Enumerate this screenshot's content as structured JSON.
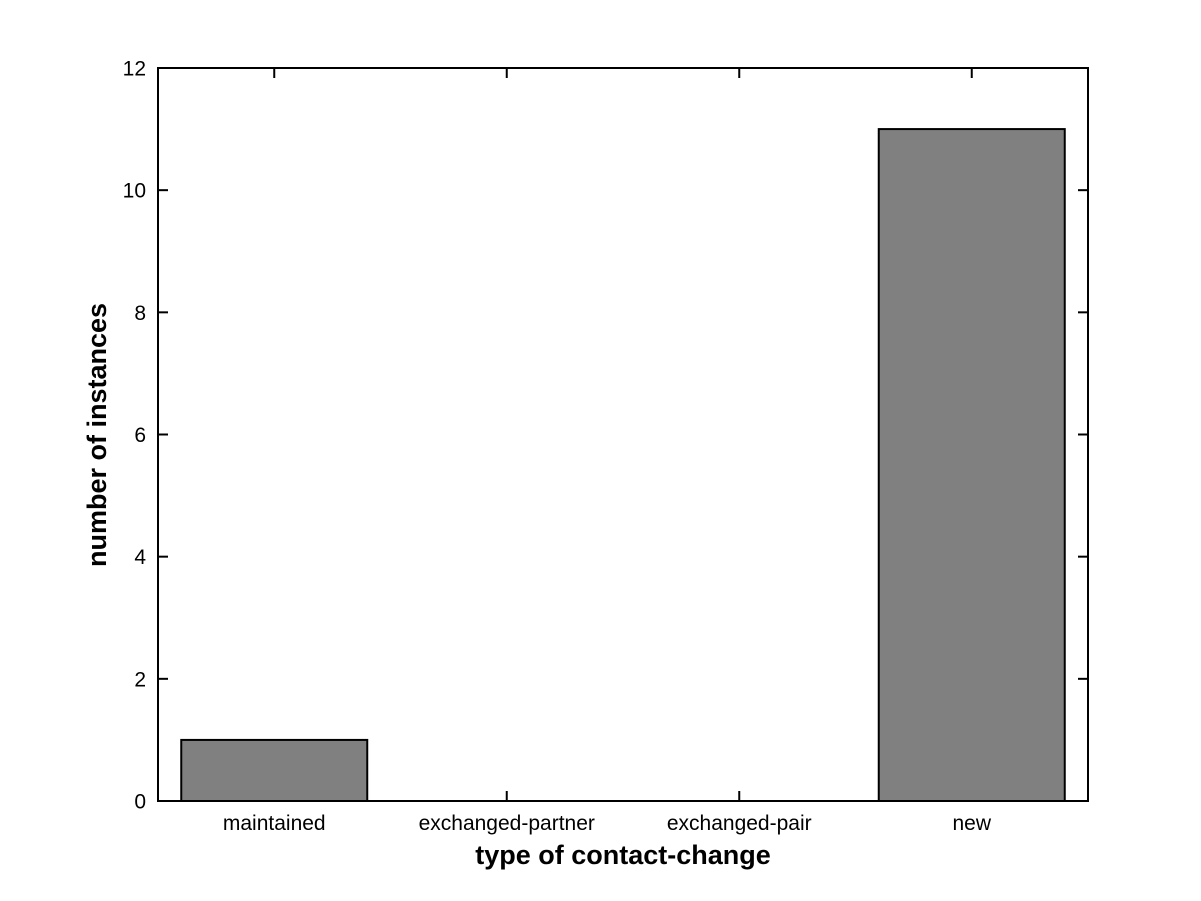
{
  "figure": {
    "background": "#ffffff"
  },
  "chart_data": {
    "type": "bar",
    "title": "",
    "categories": [
      "maintained",
      "exchanged-partner",
      "exchanged-pair",
      "new"
    ],
    "values": [
      1,
      0,
      0,
      11
    ],
    "xlabel": "type of contact-change",
    "ylabel": "number of instances",
    "ylim": [
      0,
      12
    ],
    "yticks": [
      0,
      2,
      4,
      6,
      8,
      10,
      12
    ],
    "grid": false,
    "legend": "none",
    "box": true,
    "tick_direction": "in",
    "bar_width_fraction": 0.8,
    "bar_color": "#808080",
    "bar_edge_color": "#000000",
    "axis_color": "#000000",
    "label_color": "#000000"
  }
}
